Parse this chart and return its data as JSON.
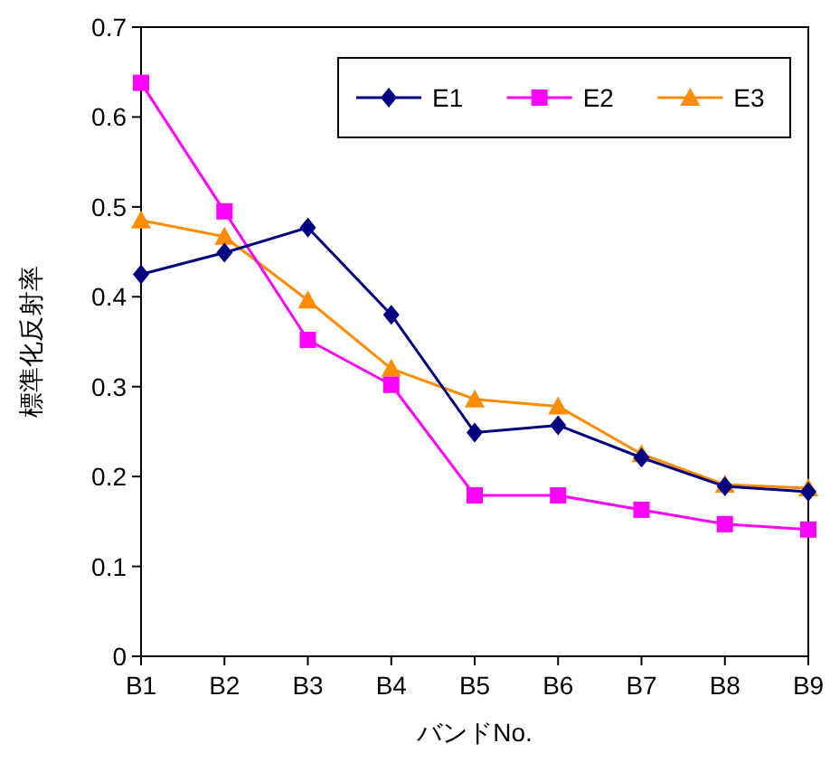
{
  "chart_data": {
    "type": "line",
    "xlabel": "バンドNo.",
    "ylabel": "標準化反射率",
    "categories": [
      "B1",
      "B2",
      "B3",
      "B4",
      "B5",
      "B6",
      "B7",
      "B8",
      "B9"
    ],
    "series": [
      {
        "name": "E1",
        "color": "#000080",
        "marker": "diamond",
        "values": [
          0.425,
          0.449,
          0.477,
          0.38,
          0.249,
          0.257,
          0.221,
          0.189,
          0.183
        ]
      },
      {
        "name": "E2",
        "color": "#ff00ff",
        "marker": "square",
        "values": [
          0.638,
          0.495,
          0.352,
          0.302,
          0.179,
          0.179,
          0.163,
          0.147,
          0.141
        ]
      },
      {
        "name": "E3",
        "color": "#ff8c00",
        "marker": "triangle",
        "values": [
          0.485,
          0.467,
          0.396,
          0.32,
          0.286,
          0.278,
          0.225,
          0.191,
          0.187
        ]
      }
    ],
    "ylim": [
      0,
      0.7
    ],
    "yticks": [
      0,
      0.1,
      0.2,
      0.3,
      0.4,
      0.5,
      0.6,
      0.7
    ],
    "grid": false,
    "legend": "top right",
    "line_style": "solid"
  }
}
